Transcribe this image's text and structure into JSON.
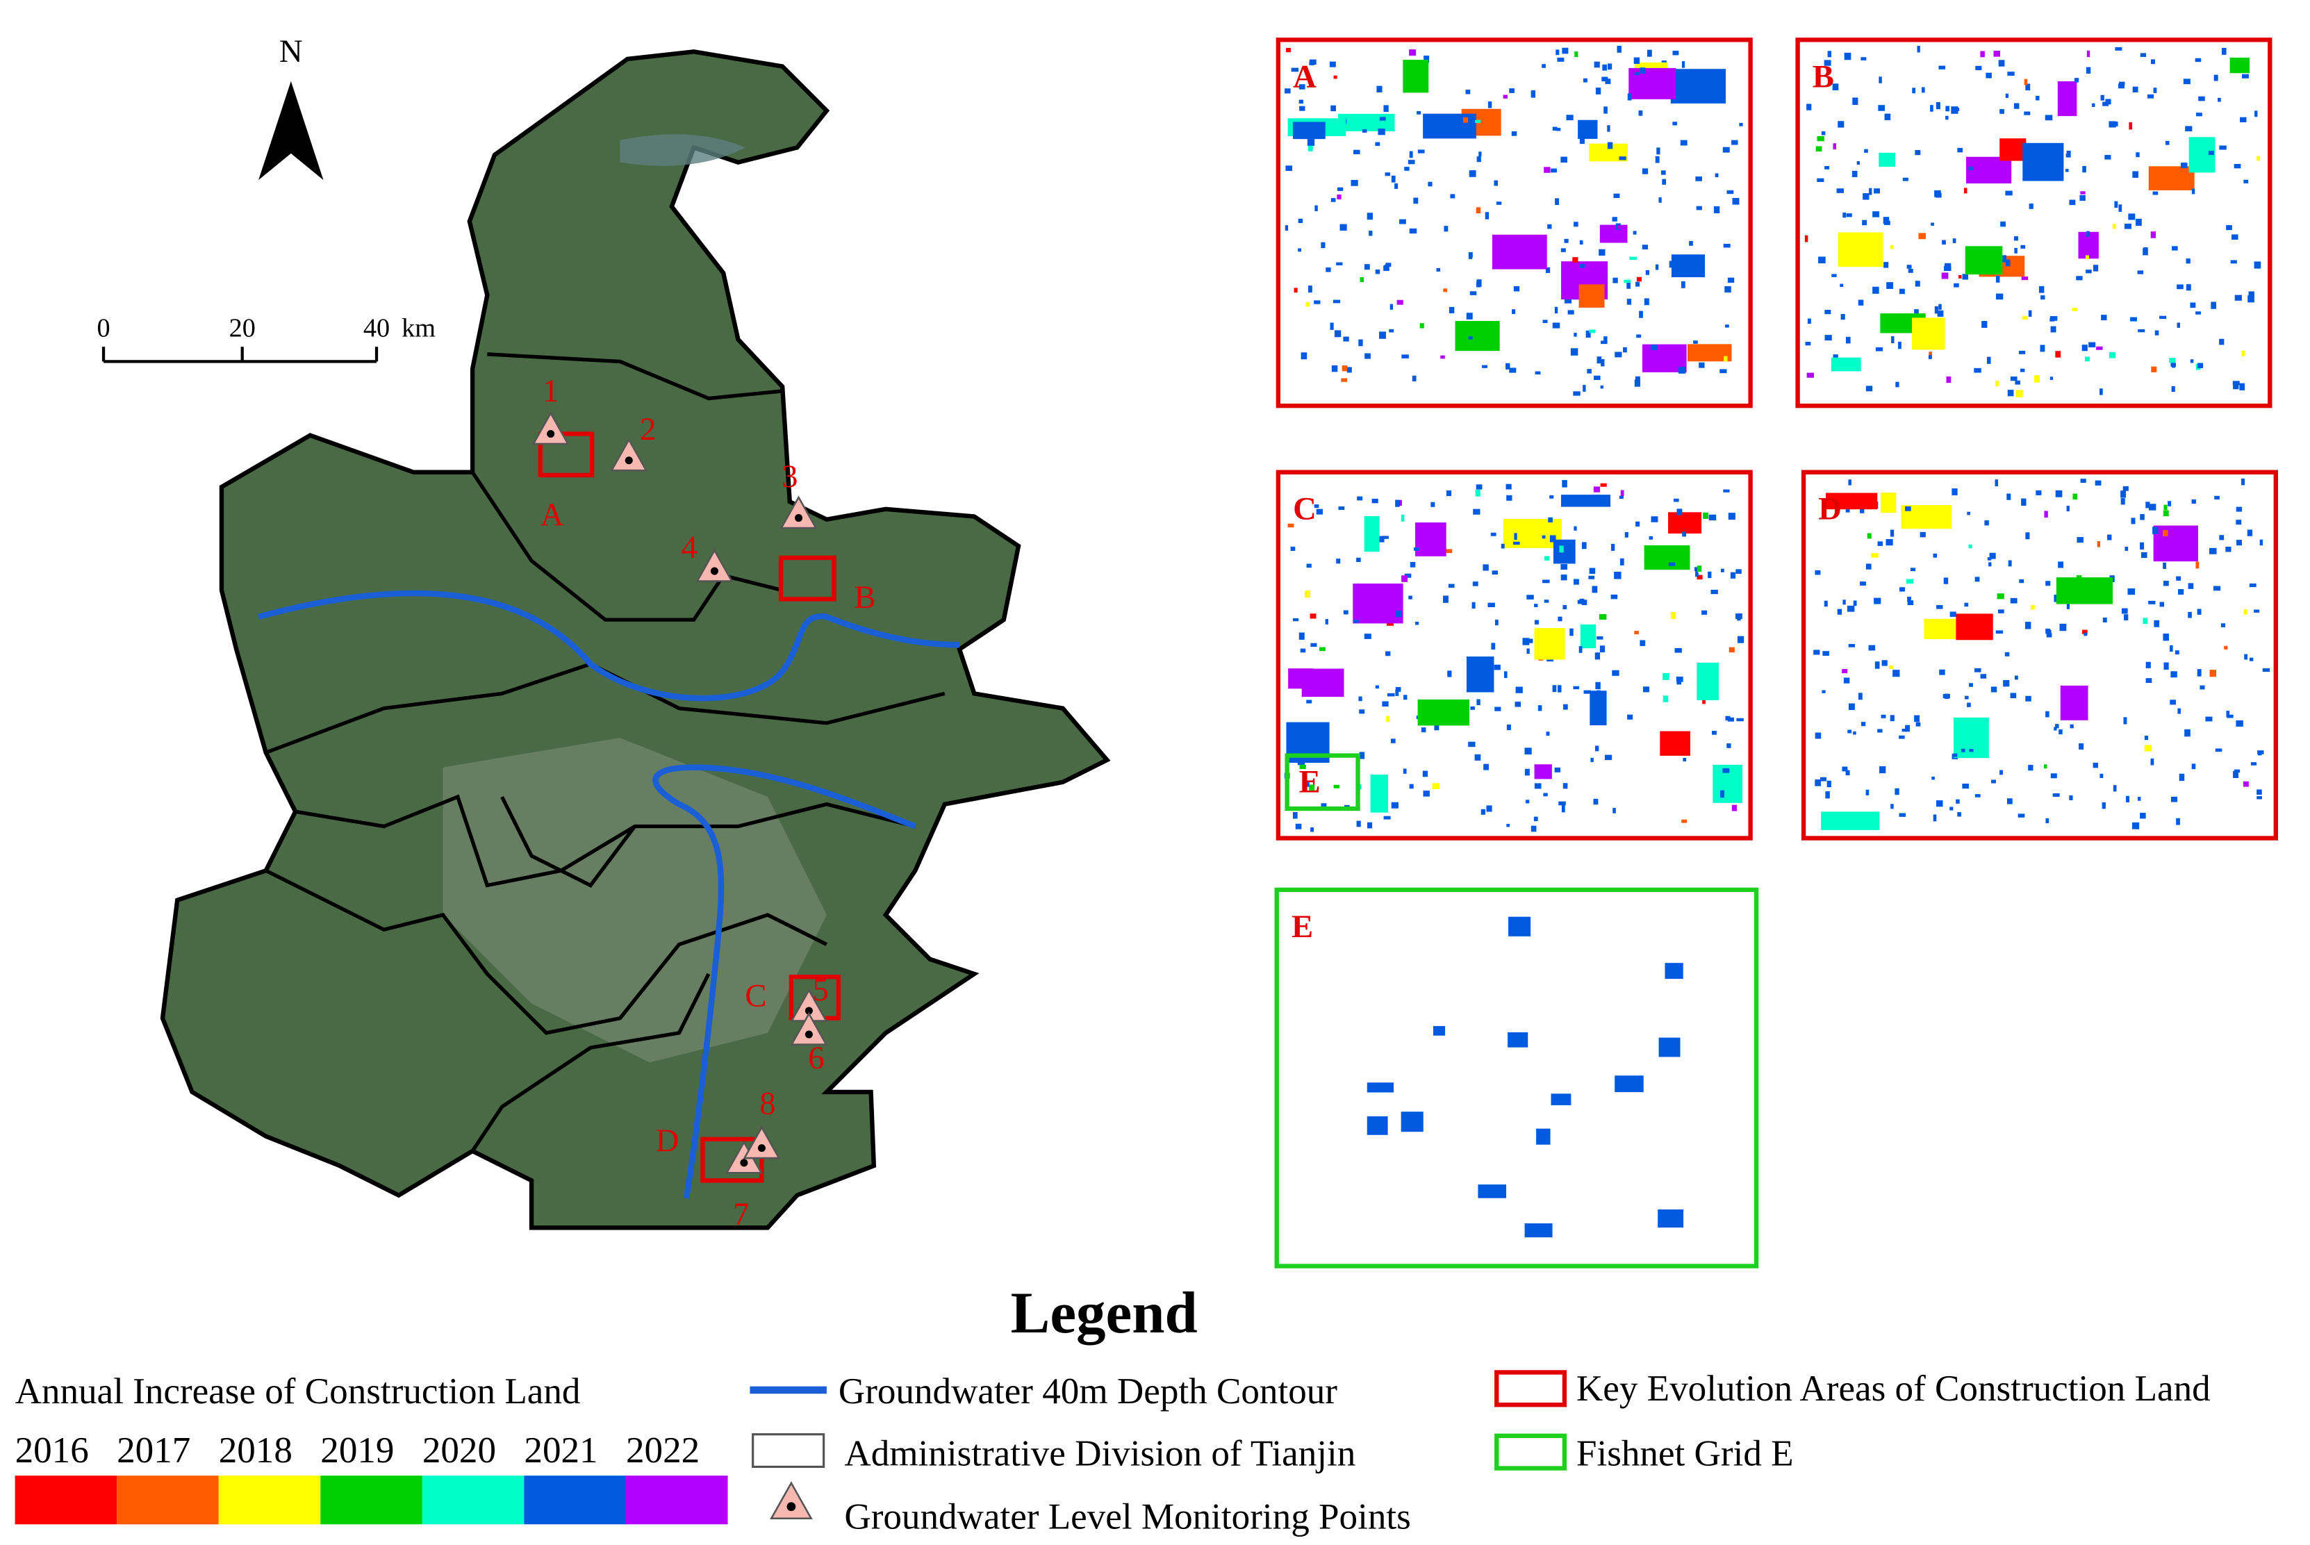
{
  "map": {
    "north": "N",
    "scale": {
      "ticks": [
        0,
        20,
        40
      ],
      "unit": "km"
    },
    "monitoring_points": [
      "1",
      "2",
      "3",
      "4",
      "5",
      "6",
      "7",
      "8"
    ],
    "key_areas": [
      "A",
      "B",
      "C",
      "D"
    ]
  },
  "panels": [
    "A",
    "B",
    "C",
    "D",
    "E"
  ],
  "legend": {
    "title": "Legend",
    "construction_land": {
      "label": "Annual Increase of Construction Land",
      "years": [
        {
          "label": "2016",
          "color": "#ff0000"
        },
        {
          "label": "2017",
          "color": "#ff5a00"
        },
        {
          "label": "2018",
          "color": "#ffff00"
        },
        {
          "label": "2019",
          "color": "#00d000"
        },
        {
          "label": "2020",
          "color": "#00ffc8"
        },
        {
          "label": "2021",
          "color": "#005ae0"
        },
        {
          "label": "2022",
          "color": "#b400ff"
        }
      ]
    },
    "groundwater_contour": "Groundwater  40m Depth Contour",
    "admin_division": "Administrative Division of Tianjin",
    "monitoring_points": "Groundwater Level Monitoring Points",
    "key_areas": "Key Evolution Areas of Construction Land",
    "fishnet": "Fishnet Grid E"
  }
}
